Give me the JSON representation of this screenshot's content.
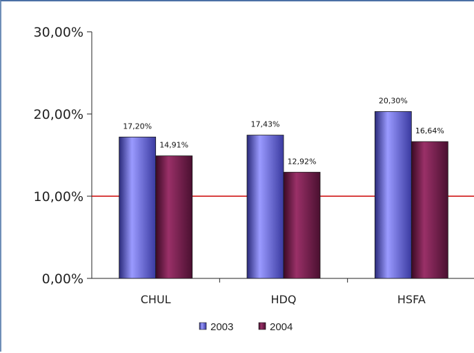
{
  "chart_data": {
    "type": "bar",
    "title": "",
    "xlabel": "",
    "ylabel": "",
    "categories": [
      "CHUL",
      "HDQ",
      "HSFA"
    ],
    "series": [
      {
        "name": "2003",
        "values": [
          17.2,
          17.43,
          20.3
        ],
        "labels": [
          "17,20%",
          "17,43%",
          "20,30%"
        ],
        "color": "#6f6fe6"
      },
      {
        "name": "2004",
        "values": [
          14.91,
          12.92,
          16.64
        ],
        "labels": [
          "14,91%",
          "12,92%",
          "16,64%"
        ],
        "color": "#7a2050"
      }
    ],
    "ylim": [
      0,
      30
    ],
    "yticks": [
      0,
      10,
      20,
      30
    ],
    "ytick_labels": [
      "0,00%",
      "10,00%",
      "20,00%",
      "30,00%"
    ],
    "reference_line": {
      "value": 10,
      "color": "#cc0000"
    },
    "legend_position": "bottom",
    "grid": false
  }
}
